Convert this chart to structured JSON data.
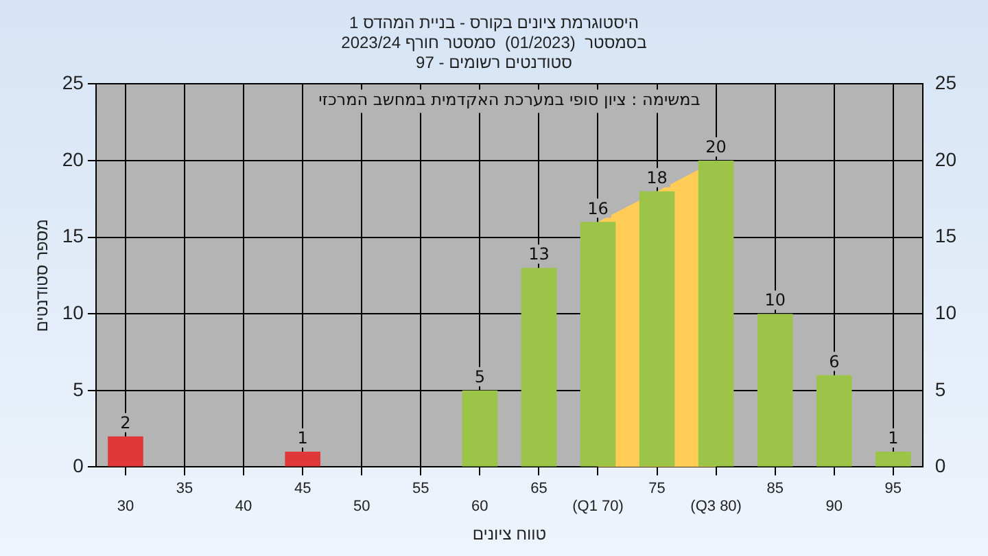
{
  "chart_data": {
    "type": "bar",
    "title": "היסטוגרמת ציונים בקורס - בניית המהדס 1",
    "subtitle": "בסמסטר  (01/2023)  סמסטר חורף 2023/24\nסטודנטים רשומים - 97",
    "xlabel": "טווח ציונים",
    "ylabel": "מספר סטודנטים",
    "annotations": [
      "במשימה : ציון סופי במערכת האקדמית במחשב המרכזי"
    ],
    "categories": [
      "30",
      "35",
      "40",
      "45",
      "50",
      "55",
      "60",
      "65",
      "(Q1 70)",
      "75",
      "(Q3 80)",
      "85",
      "90",
      "95"
    ],
    "series": [
      {
        "type": "area",
        "color": "#ffcc55",
        "values": [
          null,
          null,
          null,
          null,
          null,
          null,
          null,
          null,
          16,
          18,
          20,
          null,
          null,
          null
        ]
      },
      {
        "colors": [
          "#e03838",
          "#e03838",
          "#e03838",
          "#e03838",
          "#9cc448",
          "#9cc448",
          "#9cc448",
          "#9cc448",
          "#9cc448",
          "#9cc448",
          "#9cc448",
          "#9cc448",
          "#9cc448",
          "#9cc448"
        ],
        "values": [
          2,
          null,
          null,
          1,
          null,
          null,
          5,
          13,
          16,
          18,
          20,
          10,
          6,
          1
        ],
        "value_labels": [
          "2",
          null,
          null,
          "1",
          null,
          null,
          "5",
          "13",
          "16",
          "18",
          "20",
          "10",
          "6",
          "1"
        ]
      }
    ],
    "ylim": [
      0,
      25
    ],
    "yticks": [
      0,
      5,
      10,
      15,
      20,
      25
    ],
    "y2lim": [
      0,
      25
    ],
    "y2ticks": [
      0,
      5,
      10,
      15,
      20,
      25
    ],
    "grid": true,
    "legend": false
  }
}
